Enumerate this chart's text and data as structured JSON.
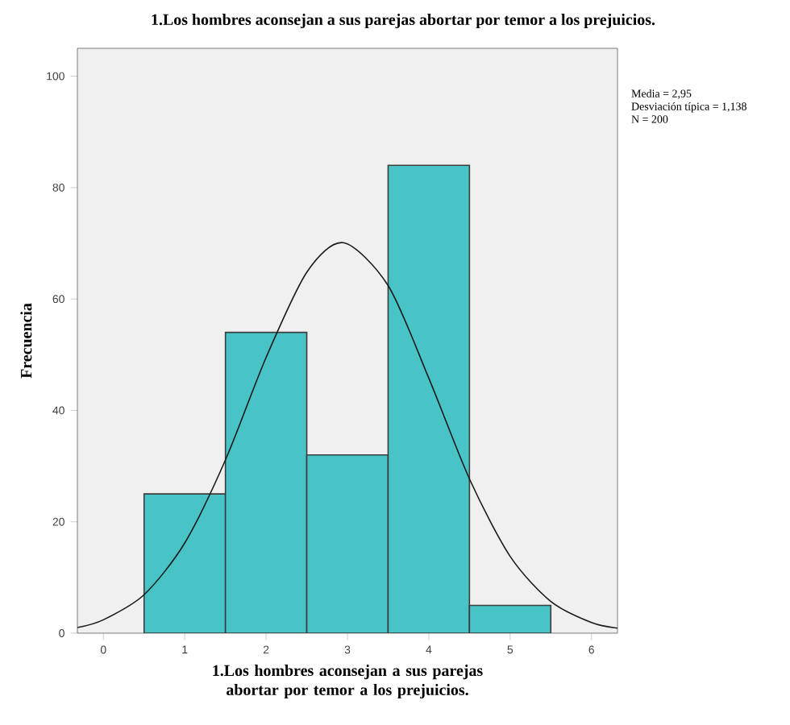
{
  "chart_data": {
    "type": "histogram",
    "title": "1.Los hombres aconsejan a sus parejas abortar por temor a los prejuicios.",
    "xlabel": "1.Los hombres aconsejan a sus parejas abortar por temor a los prejuicios.",
    "ylabel": "Frecuencia",
    "annotations": [
      "Media = 2,95",
      "Desviación típica = 1,138",
      "N = 200"
    ],
    "xlim": [
      -0.32,
      6.32
    ],
    "ylim": [
      0,
      105
    ],
    "xticks": [
      0,
      1,
      2,
      3,
      4,
      5,
      6
    ],
    "yticks": [
      0,
      20,
      40,
      60,
      80,
      100
    ],
    "series": [
      {
        "color": "#48c4c6",
        "bins": [
          0.5,
          1.5,
          2.5,
          3.5,
          4.5,
          5.5
        ],
        "values": [
          25,
          54,
          32,
          84,
          5
        ]
      },
      {
        "type": "line",
        "color": "#1a1a1a",
        "x": [
          -0.32,
          0,
          0.5,
          1,
          1.5,
          2,
          2.5,
          2.95,
          3.5,
          4,
          4.5,
          5,
          5.5,
          6,
          6.32
        ],
        "values": [
          1.0,
          2.4,
          6.9,
          16.2,
          31.1,
          49.5,
          64.8,
          70.1,
          62.4,
          45.8,
          27.7,
          13.8,
          5.7,
          1.9,
          0.9
        ]
      }
    ]
  }
}
